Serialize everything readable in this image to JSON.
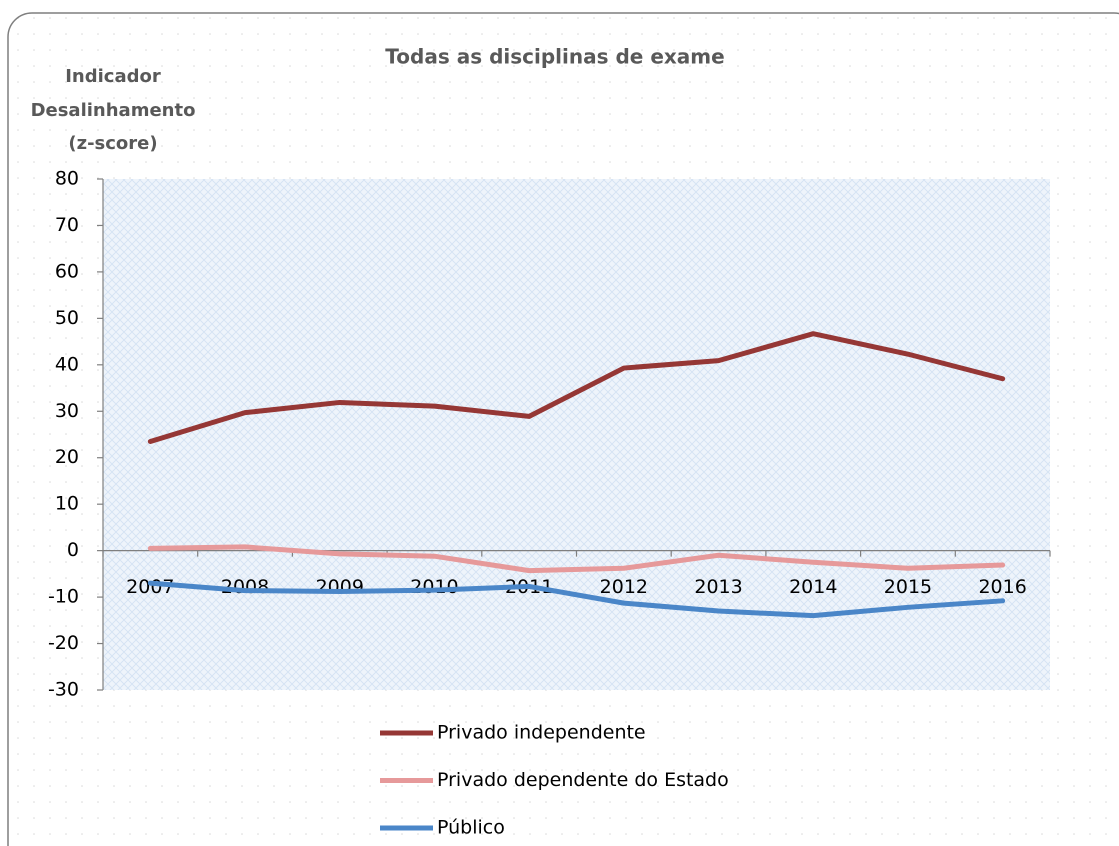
{
  "chart_data": {
    "type": "line",
    "title": "Todas as disciplinas de exame",
    "ylabel": [
      "Indicador",
      "Desalinhamento",
      "(z-score)"
    ],
    "categories": [
      "2007",
      "2008",
      "2009",
      "2010",
      "2011",
      "2012",
      "2013",
      "2014",
      "2015",
      "2016"
    ],
    "series": [
      {
        "name": "Privado independente",
        "color": "#953735",
        "values": [
          23.5,
          29.7,
          31.9,
          31.1,
          28.9,
          39.3,
          40.9,
          46.7,
          42.3,
          37.0
        ]
      },
      {
        "name": "Privado dependente do Estado",
        "color": "#e6999a",
        "values": [
          0.5,
          0.8,
          -0.7,
          -1.2,
          -4.3,
          -3.8,
          -1.0,
          -2.5,
          -3.8,
          -3.1
        ]
      },
      {
        "name": "Público",
        "color": "#4a86c8",
        "values": [
          -7.0,
          -8.6,
          -8.8,
          -8.5,
          -7.7,
          -11.3,
          -13.0,
          -14.0,
          -12.2,
          -10.8
        ]
      }
    ],
    "ylim": [
      -30,
      80
    ],
    "yticks": [
      -30,
      -20,
      -10,
      0,
      10,
      20,
      30,
      40,
      50,
      60,
      70,
      80
    ],
    "legend": "bottom"
  }
}
